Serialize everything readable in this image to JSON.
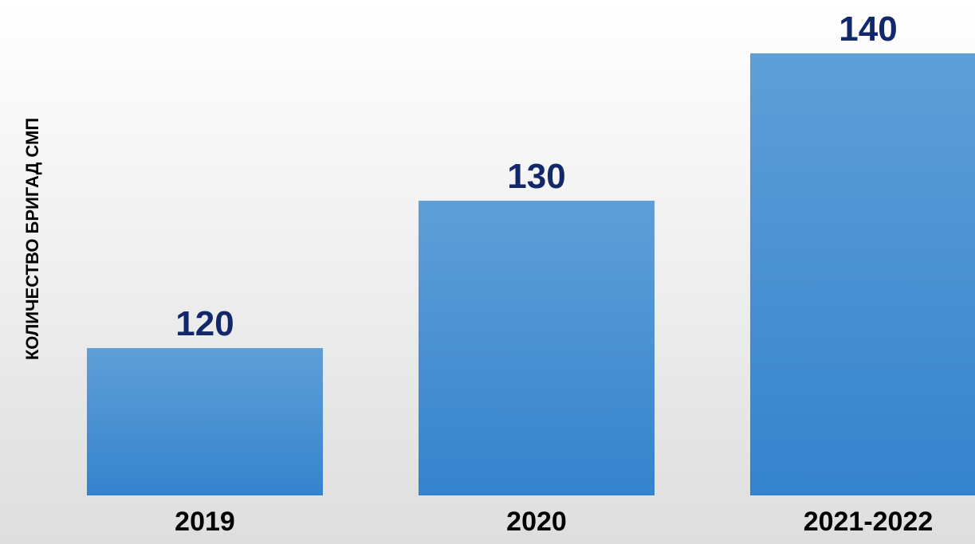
{
  "chart_data": {
    "type": "bar",
    "title": "",
    "xlabel": "",
    "ylabel": "КОЛИЧЕСТВО БРИГАД СМП",
    "categories": [
      "2019",
      "2020",
      "2021-2022"
    ],
    "values": [
      120,
      130,
      140
    ],
    "data_labels": [
      "120",
      "130",
      "140"
    ],
    "grid": false,
    "legend": "none"
  },
  "colors": {
    "bar_top": "#5f9fd8",
    "bar_bottom": "#3583cd",
    "value_label": "#13286b",
    "tick_label": "#000000"
  }
}
